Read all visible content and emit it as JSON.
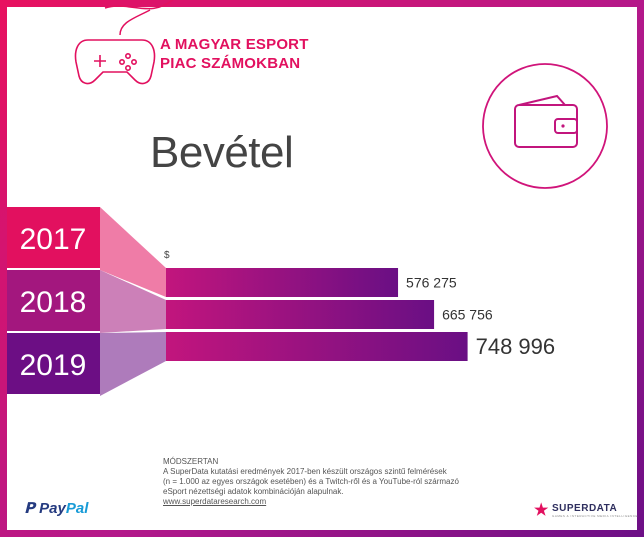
{
  "header": {
    "title_line1": "A MAGYAR ESPORT",
    "title_line2": "PIAC SZÁMOKBAN"
  },
  "heading": "Bevétel",
  "icons": {
    "controller": "gamepad-icon",
    "wallet": "wallet-icon",
    "logo_star": "star-icon"
  },
  "chart_data": {
    "type": "bar",
    "orientation": "horizontal",
    "categories": [
      "2017",
      "2018",
      "2019"
    ],
    "values": [
      576275,
      665756,
      748996
    ],
    "value_labels": [
      "576 275",
      "665 756",
      "748 996"
    ],
    "unit_label": "$",
    "xlim": [
      0,
      750000
    ],
    "legend": "none",
    "grid": false
  },
  "colors": {
    "pink": "#e2105f",
    "bar_gradient_start": "#c2157d",
    "bar_gradient_end": "#6a0f84",
    "label_2017": "#e2105f",
    "label_2018": "#a3177e",
    "label_2019": "#6c0e84"
  },
  "methodology": {
    "title": "MÓDSZERTAN",
    "line1": "A SuperData kutatási eredmények 2017-ben készült országos szintű felmérések",
    "line2": "(n = 1.000 az egyes országok esetében) és a Twitch-ről és a YouTube-ról származó",
    "line3": "eSport nézettségi adatok kombinációján alapulnak.",
    "link": "www.superdataresearch.com"
  },
  "footer": {
    "paypal_a": "Pay",
    "paypal_b": "Pal",
    "superdata": "SUPERDATA",
    "superdata_tag": "GAMES & INTERACTIVE MEDIA INTELLIGENCE"
  }
}
